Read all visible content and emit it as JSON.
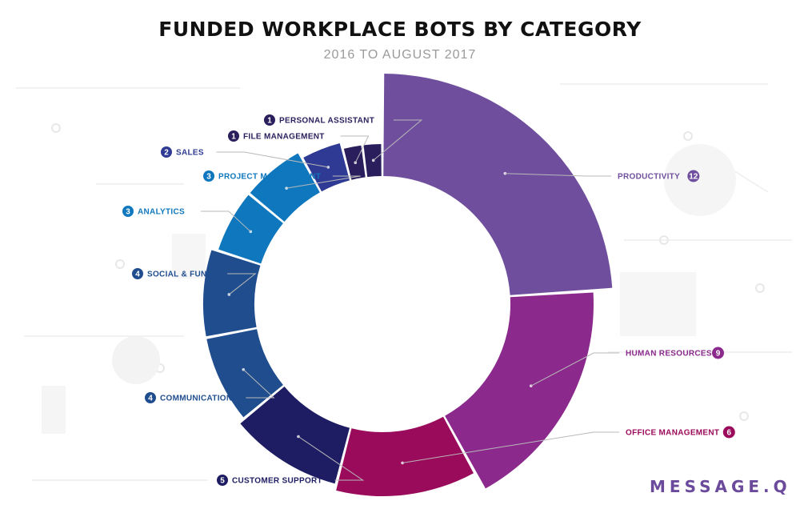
{
  "header": {
    "title": "FUNDED WORKPLACE BOTS BY CATEGORY",
    "subtitle": "2016 TO AUGUST 2017"
  },
  "brand": {
    "logo_text": "MESSAGE.Q"
  },
  "chart_data": {
    "type": "pie",
    "variant": "variable-radius donut",
    "title": "FUNDED WORKPLACE BOTS BY CATEGORY",
    "subtitle": "2016 TO AUGUST 2017",
    "categories": [
      "PRODUCTIVITY",
      "HUMAN RESOURCES",
      "OFFICE MANAGEMENT",
      "CUSTOMER SUPPORT",
      "COMMUNICATION",
      "SOCIAL & FUN",
      "ANALYTICS",
      "PROJECT MANAGEMENT",
      "SALES",
      "FILE MANAGEMENT",
      "PERSONAL ASSISTANT"
    ],
    "values": [
      12,
      9,
      6,
      5,
      4,
      4,
      3,
      3,
      2,
      1,
      1
    ],
    "colors": [
      "#6f4f9d",
      "#8b2a8c",
      "#9a0b5b",
      "#1e1c63",
      "#1f4d8e",
      "#1f4d8e",
      "#0f77bd",
      "#0f77bd",
      "#2e3a93",
      "#2b1e5c",
      "#2b1e5c"
    ],
    "label_colors": [
      "#6f4f9d",
      "#8b2a8c",
      "#9a0b5b",
      "#1e1c63",
      "#1f4d8e",
      "#1f4d8e",
      "#0f77bd",
      "#0f77bd",
      "#2e3a93",
      "#2b1e5c",
      "#2b1e5c"
    ],
    "legend": "callout labels around the ring"
  }
}
